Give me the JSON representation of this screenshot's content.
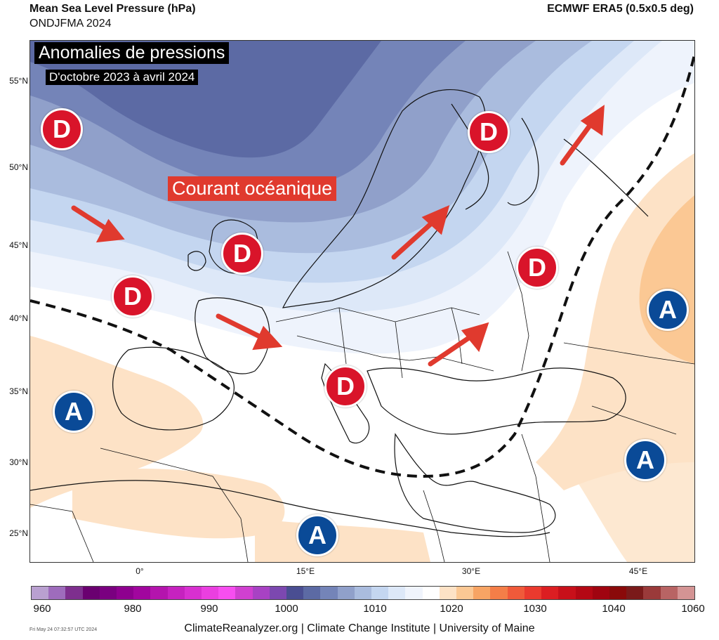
{
  "header": {
    "title": "Mean Sea Level Pressure (hPa)",
    "period": "ONDJFMA 2024",
    "source": "ECMWF ERA5 (0.5x0.5 deg)"
  },
  "overlay": {
    "title": "Anomalies de pressions",
    "subtitle": "D'octobre 2023 à avril 2024",
    "current_label": "Courant océanique"
  },
  "lat_labels": [
    "55°N",
    "50°N",
    "45°N",
    "40°N",
    "35°N",
    "30°N",
    "25°N"
  ],
  "lon_labels": [
    "0°",
    "15°E",
    "30°E",
    "45°E"
  ],
  "markers": {
    "low": "D",
    "high": "A"
  },
  "colorbar": {
    "colors": [
      "#b9a0d0",
      "#9e6cbc",
      "#7e2f8e",
      "#6a0070",
      "#7a0080",
      "#8e008f",
      "#a1069e",
      "#b414ad",
      "#c622bf",
      "#d830d0",
      "#ea3fe0",
      "#f74ef0",
      "#d040d0",
      "#a842c4",
      "#7c48b0",
      "#4a4e92",
      "#5c6aa4",
      "#7484b8",
      "#90a0ca",
      "#aabcde",
      "#c4d6f0",
      "#dde8f8",
      "#f0f4fc",
      "#ffffff",
      "#fde2c6",
      "#fbc894",
      "#f7a464",
      "#f47e48",
      "#f05a3a",
      "#ea3a2e",
      "#dc1e22",
      "#c8101a",
      "#b40814",
      "#a00410",
      "#8a0a0a",
      "#7a1a1a",
      "#9a3a3a",
      "#b86464",
      "#d49494"
    ],
    "labels": [
      "960",
      "980",
      "990",
      "1000",
      "1010",
      "1020",
      "1030",
      "1040",
      "1060"
    ]
  },
  "footer": {
    "timestamp": "Fri May 24 07:32:57 UTC 2024",
    "credit": "ClimateReanalyzer.org | Climate Change Institute | University of Maine"
  }
}
